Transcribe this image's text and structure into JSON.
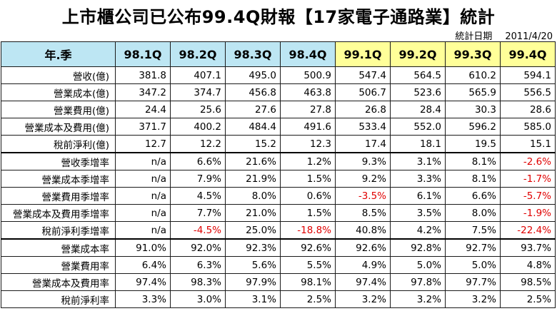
{
  "title": "上市櫃公司已公布99.4Q財報【17家電子通路業】統計",
  "stat_date": {
    "label": "統計日期",
    "value": "2011/4/20"
  },
  "colors": {
    "header_prev": "#bde6f3",
    "header_curr": "#ffff99",
    "negative": "#e00000"
  },
  "table": {
    "corner": "年.季",
    "columns": [
      "98.1Q",
      "98.2Q",
      "98.3Q",
      "98.4Q",
      "99.1Q",
      "99.2Q",
      "99.3Q",
      "99.4Q"
    ],
    "rows": [
      {
        "label": "營收(億)",
        "values": [
          "381.8",
          "407.1",
          "495.0",
          "500.9",
          "547.4",
          "564.5",
          "610.2",
          "594.1"
        ]
      },
      {
        "label": "營業成本(億)",
        "values": [
          "347.2",
          "374.7",
          "456.8",
          "463.8",
          "506.7",
          "523.6",
          "565.9",
          "556.5"
        ]
      },
      {
        "label": "營業費用(億)",
        "values": [
          "24.4",
          "25.6",
          "27.6",
          "27.8",
          "26.8",
          "28.4",
          "30.3",
          "28.6"
        ]
      },
      {
        "label": "營業成本及費用(億)",
        "values": [
          "371.7",
          "400.2",
          "484.4",
          "491.6",
          "533.4",
          "552.0",
          "596.2",
          "585.0"
        ]
      },
      {
        "label": "稅前淨利(億)",
        "values": [
          "12.7",
          "12.2",
          "15.2",
          "12.3",
          "17.4",
          "18.1",
          "19.5",
          "15.1"
        ]
      },
      {
        "label": "營收季增率",
        "values": [
          "n/a",
          "6.6%",
          "21.6%",
          "1.2%",
          "9.3%",
          "3.1%",
          "8.1%",
          "-2.6%"
        ]
      },
      {
        "label": "營業成本季增率",
        "values": [
          "n/a",
          "7.9%",
          "21.9%",
          "1.5%",
          "9.2%",
          "3.3%",
          "8.1%",
          "-1.7%"
        ]
      },
      {
        "label": "營業費用季增率",
        "values": [
          "n/a",
          "4.5%",
          "8.0%",
          "0.6%",
          "-3.5%",
          "6.1%",
          "6.6%",
          "-5.7%"
        ]
      },
      {
        "label": "營業成本及費用季增率",
        "values": [
          "n/a",
          "7.7%",
          "21.0%",
          "1.5%",
          "8.5%",
          "3.5%",
          "8.0%",
          "-1.9%"
        ]
      },
      {
        "label": "稅前淨利季增率",
        "values": [
          "n/a",
          "-4.5%",
          "25.0%",
          "-18.8%",
          "40.8%",
          "4.2%",
          "7.5%",
          "-22.4%"
        ]
      },
      {
        "label": "營業成本率",
        "values": [
          "91.0%",
          "92.0%",
          "92.3%",
          "92.6%",
          "92.6%",
          "92.8%",
          "92.7%",
          "93.7%"
        ]
      },
      {
        "label": "營業費用率",
        "values": [
          "6.4%",
          "6.3%",
          "5.6%",
          "5.5%",
          "4.9%",
          "5.0%",
          "5.0%",
          "4.8%"
        ]
      },
      {
        "label": "營業成本及費用率",
        "values": [
          "97.4%",
          "98.3%",
          "97.9%",
          "98.1%",
          "97.4%",
          "97.8%",
          "97.7%",
          "98.5%"
        ]
      },
      {
        "label": "稅前淨利率",
        "values": [
          "3.3%",
          "3.0%",
          "3.1%",
          "2.5%",
          "3.2%",
          "3.2%",
          "3.2%",
          "2.5%"
        ]
      }
    ]
  }
}
